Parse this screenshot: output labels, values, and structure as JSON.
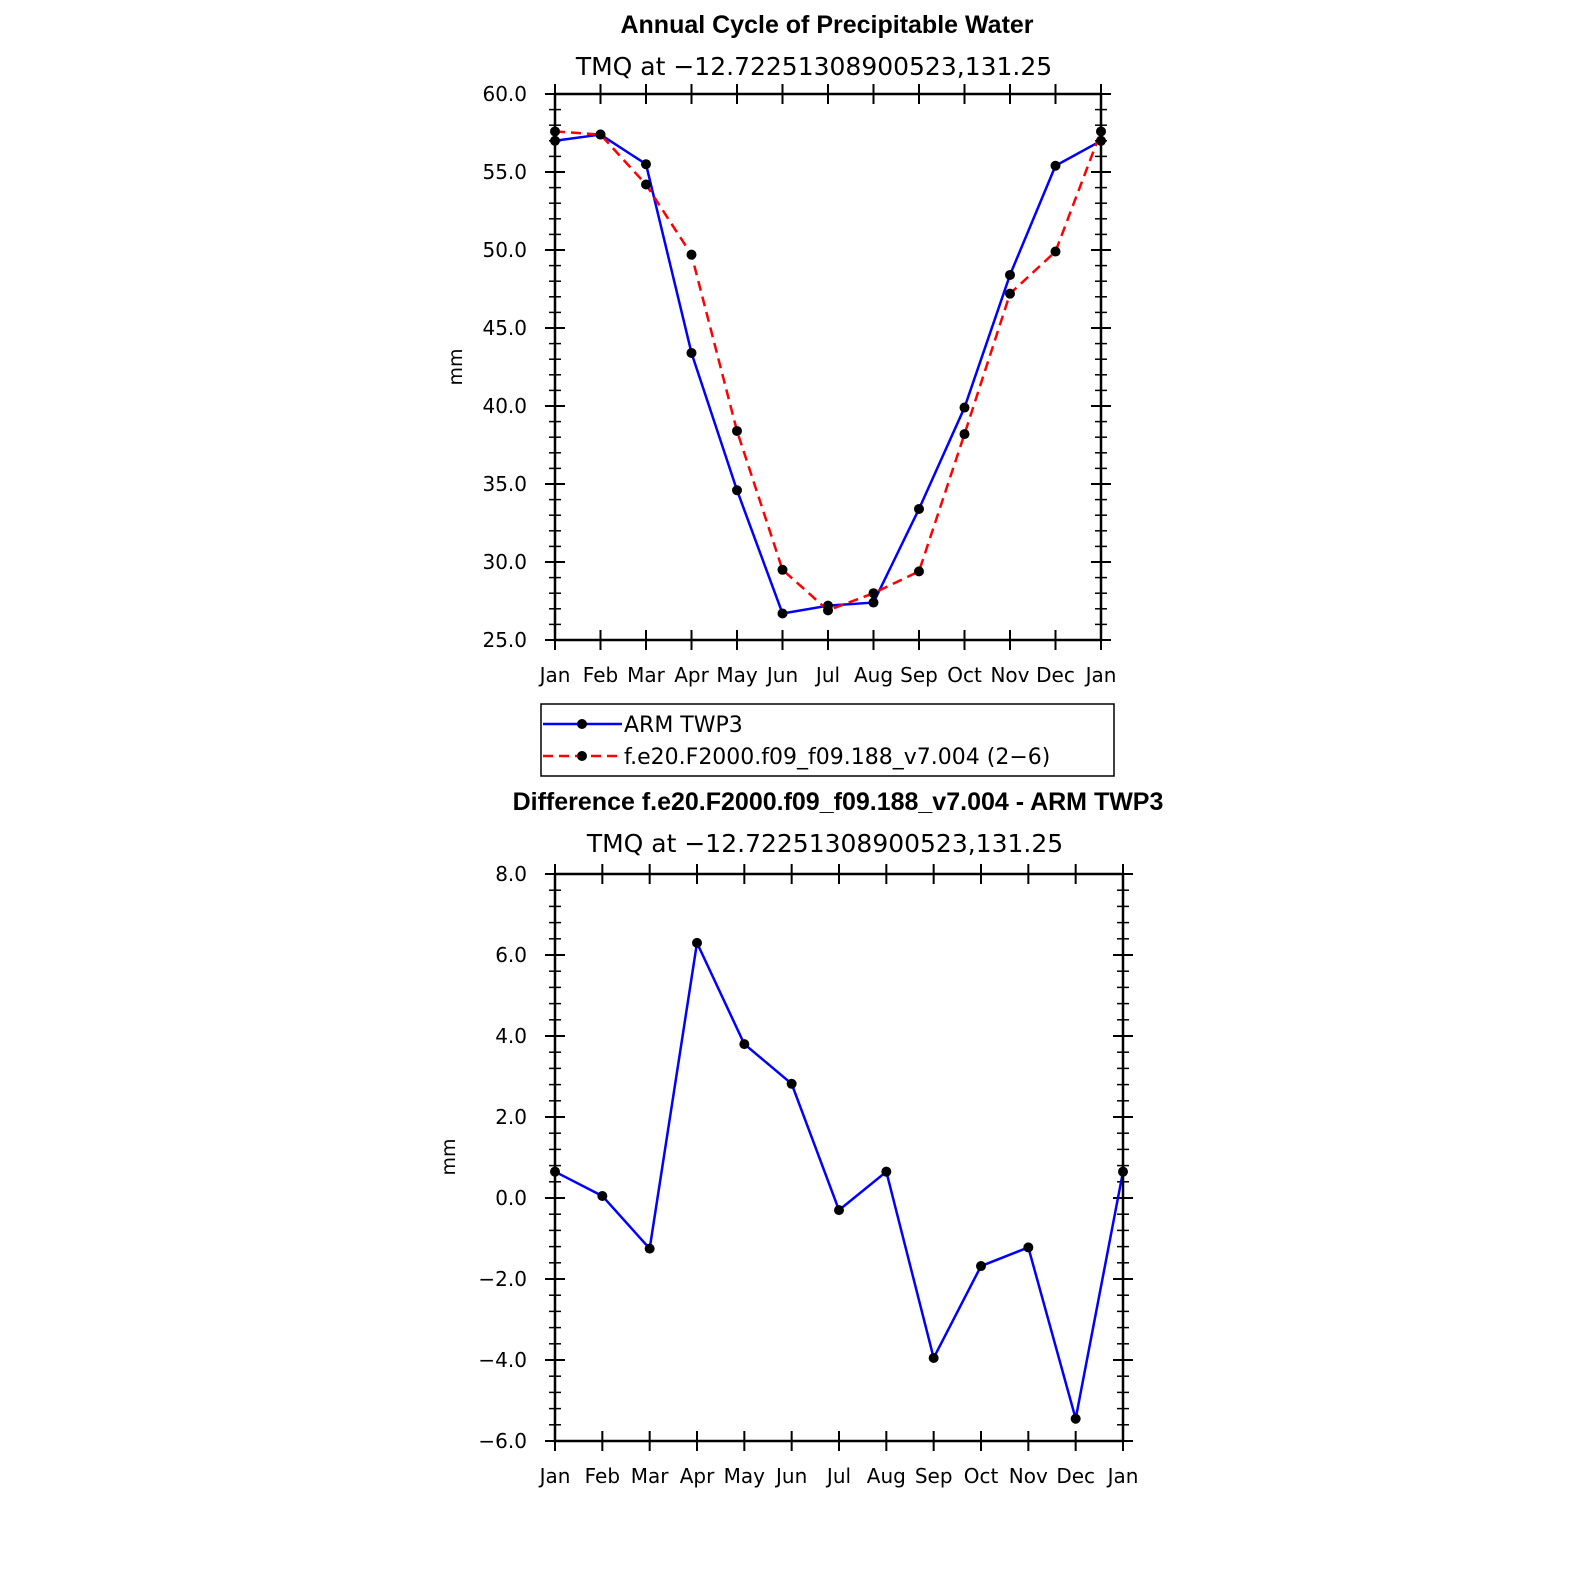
{
  "chart_data": [
    {
      "type": "line",
      "title": "Annual Cycle of Precipitable Water",
      "subtitle": "TMQ at −12.72251308900523,131.25",
      "ylabel": "mm",
      "xlabel": "",
      "categories": [
        "Jan",
        "Feb",
        "Mar",
        "Apr",
        "May",
        "Jun",
        "Jul",
        "Aug",
        "Sep",
        "Oct",
        "Nov",
        "Dec",
        "Jan"
      ],
      "ylim": [
        25.0,
        60.0
      ],
      "yticks": [
        25.0,
        30.0,
        35.0,
        40.0,
        45.0,
        50.0,
        55.0,
        60.0
      ],
      "ytick_labels": [
        "25.0",
        "30.0",
        "35.0",
        "40.0",
        "45.0",
        "50.0",
        "55.0",
        "60.0"
      ],
      "grid": false,
      "legend_position": "bottom",
      "series": [
        {
          "name": "ARM TWP3",
          "color": "#0000ff",
          "dash": "solid",
          "values": [
            57.0,
            57.4,
            55.5,
            43.4,
            34.6,
            26.7,
            27.2,
            27.4,
            33.4,
            39.9,
            48.4,
            55.4,
            57.0
          ]
        },
        {
          "name": "f.e20.F2000.f09_f09.188_v7.004 (2−6)",
          "color": "#ff0000",
          "dash": "dashed",
          "values": [
            57.6,
            57.4,
            54.2,
            49.7,
            38.4,
            29.5,
            26.9,
            28.0,
            29.4,
            38.2,
            47.2,
            49.9,
            57.6
          ]
        }
      ]
    },
    {
      "type": "line",
      "title": "Difference f.e20.F2000.f09_f09.188_v7.004 - ARM TWP3",
      "subtitle": "TMQ at −12.72251308900523,131.25",
      "ylabel": "mm",
      "xlabel": "",
      "categories": [
        "Jan",
        "Feb",
        "Mar",
        "Apr",
        "May",
        "Jun",
        "Jul",
        "Aug",
        "Sep",
        "Oct",
        "Nov",
        "Dec",
        "Jan"
      ],
      "ylim": [
        -6.0,
        8.0
      ],
      "yticks": [
        -6.0,
        -4.0,
        -2.0,
        0.0,
        2.0,
        4.0,
        6.0,
        8.0
      ],
      "ytick_labels": [
        "−6.0",
        "−4.0",
        "−2.0",
        "0.0",
        "2.0",
        "4.0",
        "6.0",
        "8.0"
      ],
      "grid": false,
      "series": [
        {
          "color": "#0000ff",
          "dash": "solid",
          "values": [
            0.65,
            0.05,
            -1.25,
            6.3,
            3.8,
            2.82,
            -0.3,
            0.65,
            -3.95,
            -1.68,
            -1.22,
            -5.45,
            0.65
          ]
        }
      ]
    }
  ]
}
